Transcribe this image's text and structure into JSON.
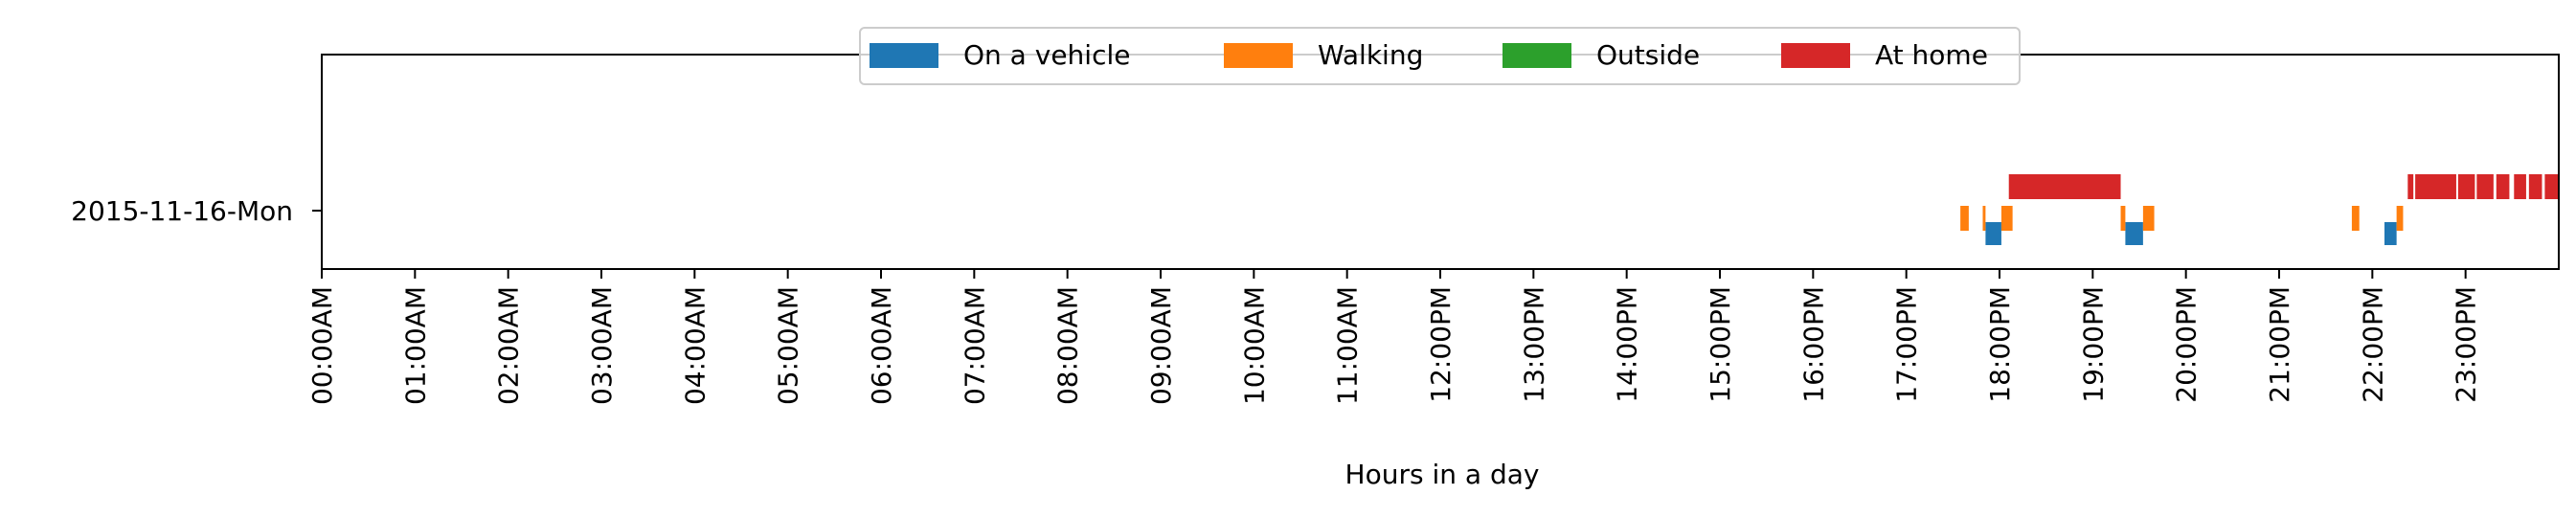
{
  "chart_data": {
    "type": "timeline",
    "xlabel": "Hours in a day",
    "ylabel": "",
    "xlim": [
      0,
      24
    ],
    "x_ticks": [
      "00:00AM",
      "01:00AM",
      "02:00AM",
      "03:00AM",
      "04:00AM",
      "05:00AM",
      "06:00AM",
      "07:00AM",
      "08:00AM",
      "09:00AM",
      "10:00AM",
      "11:00AM",
      "12:00PM",
      "13:00PM",
      "14:00PM",
      "15:00PM",
      "16:00PM",
      "17:00PM",
      "18:00PM",
      "19:00PM",
      "20:00PM",
      "21:00PM",
      "22:00PM",
      "23:00PM"
    ],
    "rows": [
      "2015-11-16-Mon"
    ],
    "legend_placement": "upper-center",
    "series": [
      {
        "name": "On a vehicle",
        "color": "#1f77b4",
        "lane": "bottom",
        "intervals": [
          [
            17.85,
            18.02
          ],
          [
            19.35,
            19.54
          ],
          [
            22.13,
            22.26
          ]
        ]
      },
      {
        "name": "Walking",
        "color": "#ff7f0e",
        "lane": "middle",
        "intervals": [
          [
            17.58,
            17.67
          ],
          [
            17.82,
            17.85
          ],
          [
            18.02,
            18.14
          ],
          [
            19.3,
            19.35
          ],
          [
            19.54,
            19.66
          ],
          [
            21.78,
            21.86
          ],
          [
            22.26,
            22.33
          ]
        ]
      },
      {
        "name": "Outside",
        "color": "#2ca02c",
        "lane": "middle",
        "intervals": []
      },
      {
        "name": "At home",
        "color": "#d62728",
        "lane": "top",
        "intervals": [
          [
            18.1,
            19.3
          ],
          [
            22.38,
            22.44
          ],
          [
            22.46,
            22.9
          ],
          [
            22.92,
            23.1
          ],
          [
            23.12,
            23.3
          ],
          [
            23.33,
            23.47
          ],
          [
            23.52,
            23.65
          ],
          [
            23.68,
            23.82
          ],
          [
            23.85,
            24.0
          ]
        ]
      }
    ]
  }
}
